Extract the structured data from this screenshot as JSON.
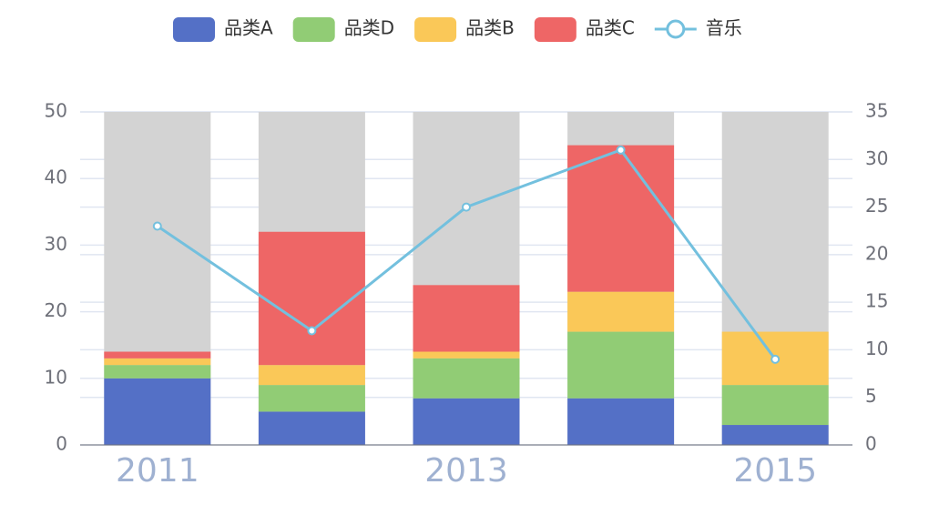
{
  "chart_data": {
    "type": "bar",
    "categories": [
      "2011",
      null,
      "2013",
      null,
      "2015"
    ],
    "series": [
      {
        "name": "品类A",
        "color": "#5470c6",
        "values": [
          10,
          5,
          7,
          7,
          3
        ]
      },
      {
        "name": "品类D",
        "color": "#91cc75",
        "values": [
          2,
          4,
          6,
          10,
          6
        ]
      },
      {
        "name": "品类B",
        "color": "#fac858",
        "values": [
          1,
          3,
          1,
          6,
          8
        ]
      },
      {
        "name": "品类C",
        "color": "#ee6666",
        "values": [
          1,
          20,
          10,
          22,
          0
        ]
      },
      {
        "name": "音乐",
        "color": "#73c0de",
        "type": "line",
        "axis": "y2",
        "values": [
          23,
          12,
          25,
          31,
          9
        ]
      }
    ],
    "ylim": [
      0,
      50
    ],
    "yticks": [
      0,
      10,
      20,
      30,
      40,
      50
    ],
    "y2lim": [
      0,
      35
    ],
    "y2ticks": [
      0,
      5,
      10,
      15,
      20,
      25,
      30,
      35
    ],
    "grid": true
  }
}
